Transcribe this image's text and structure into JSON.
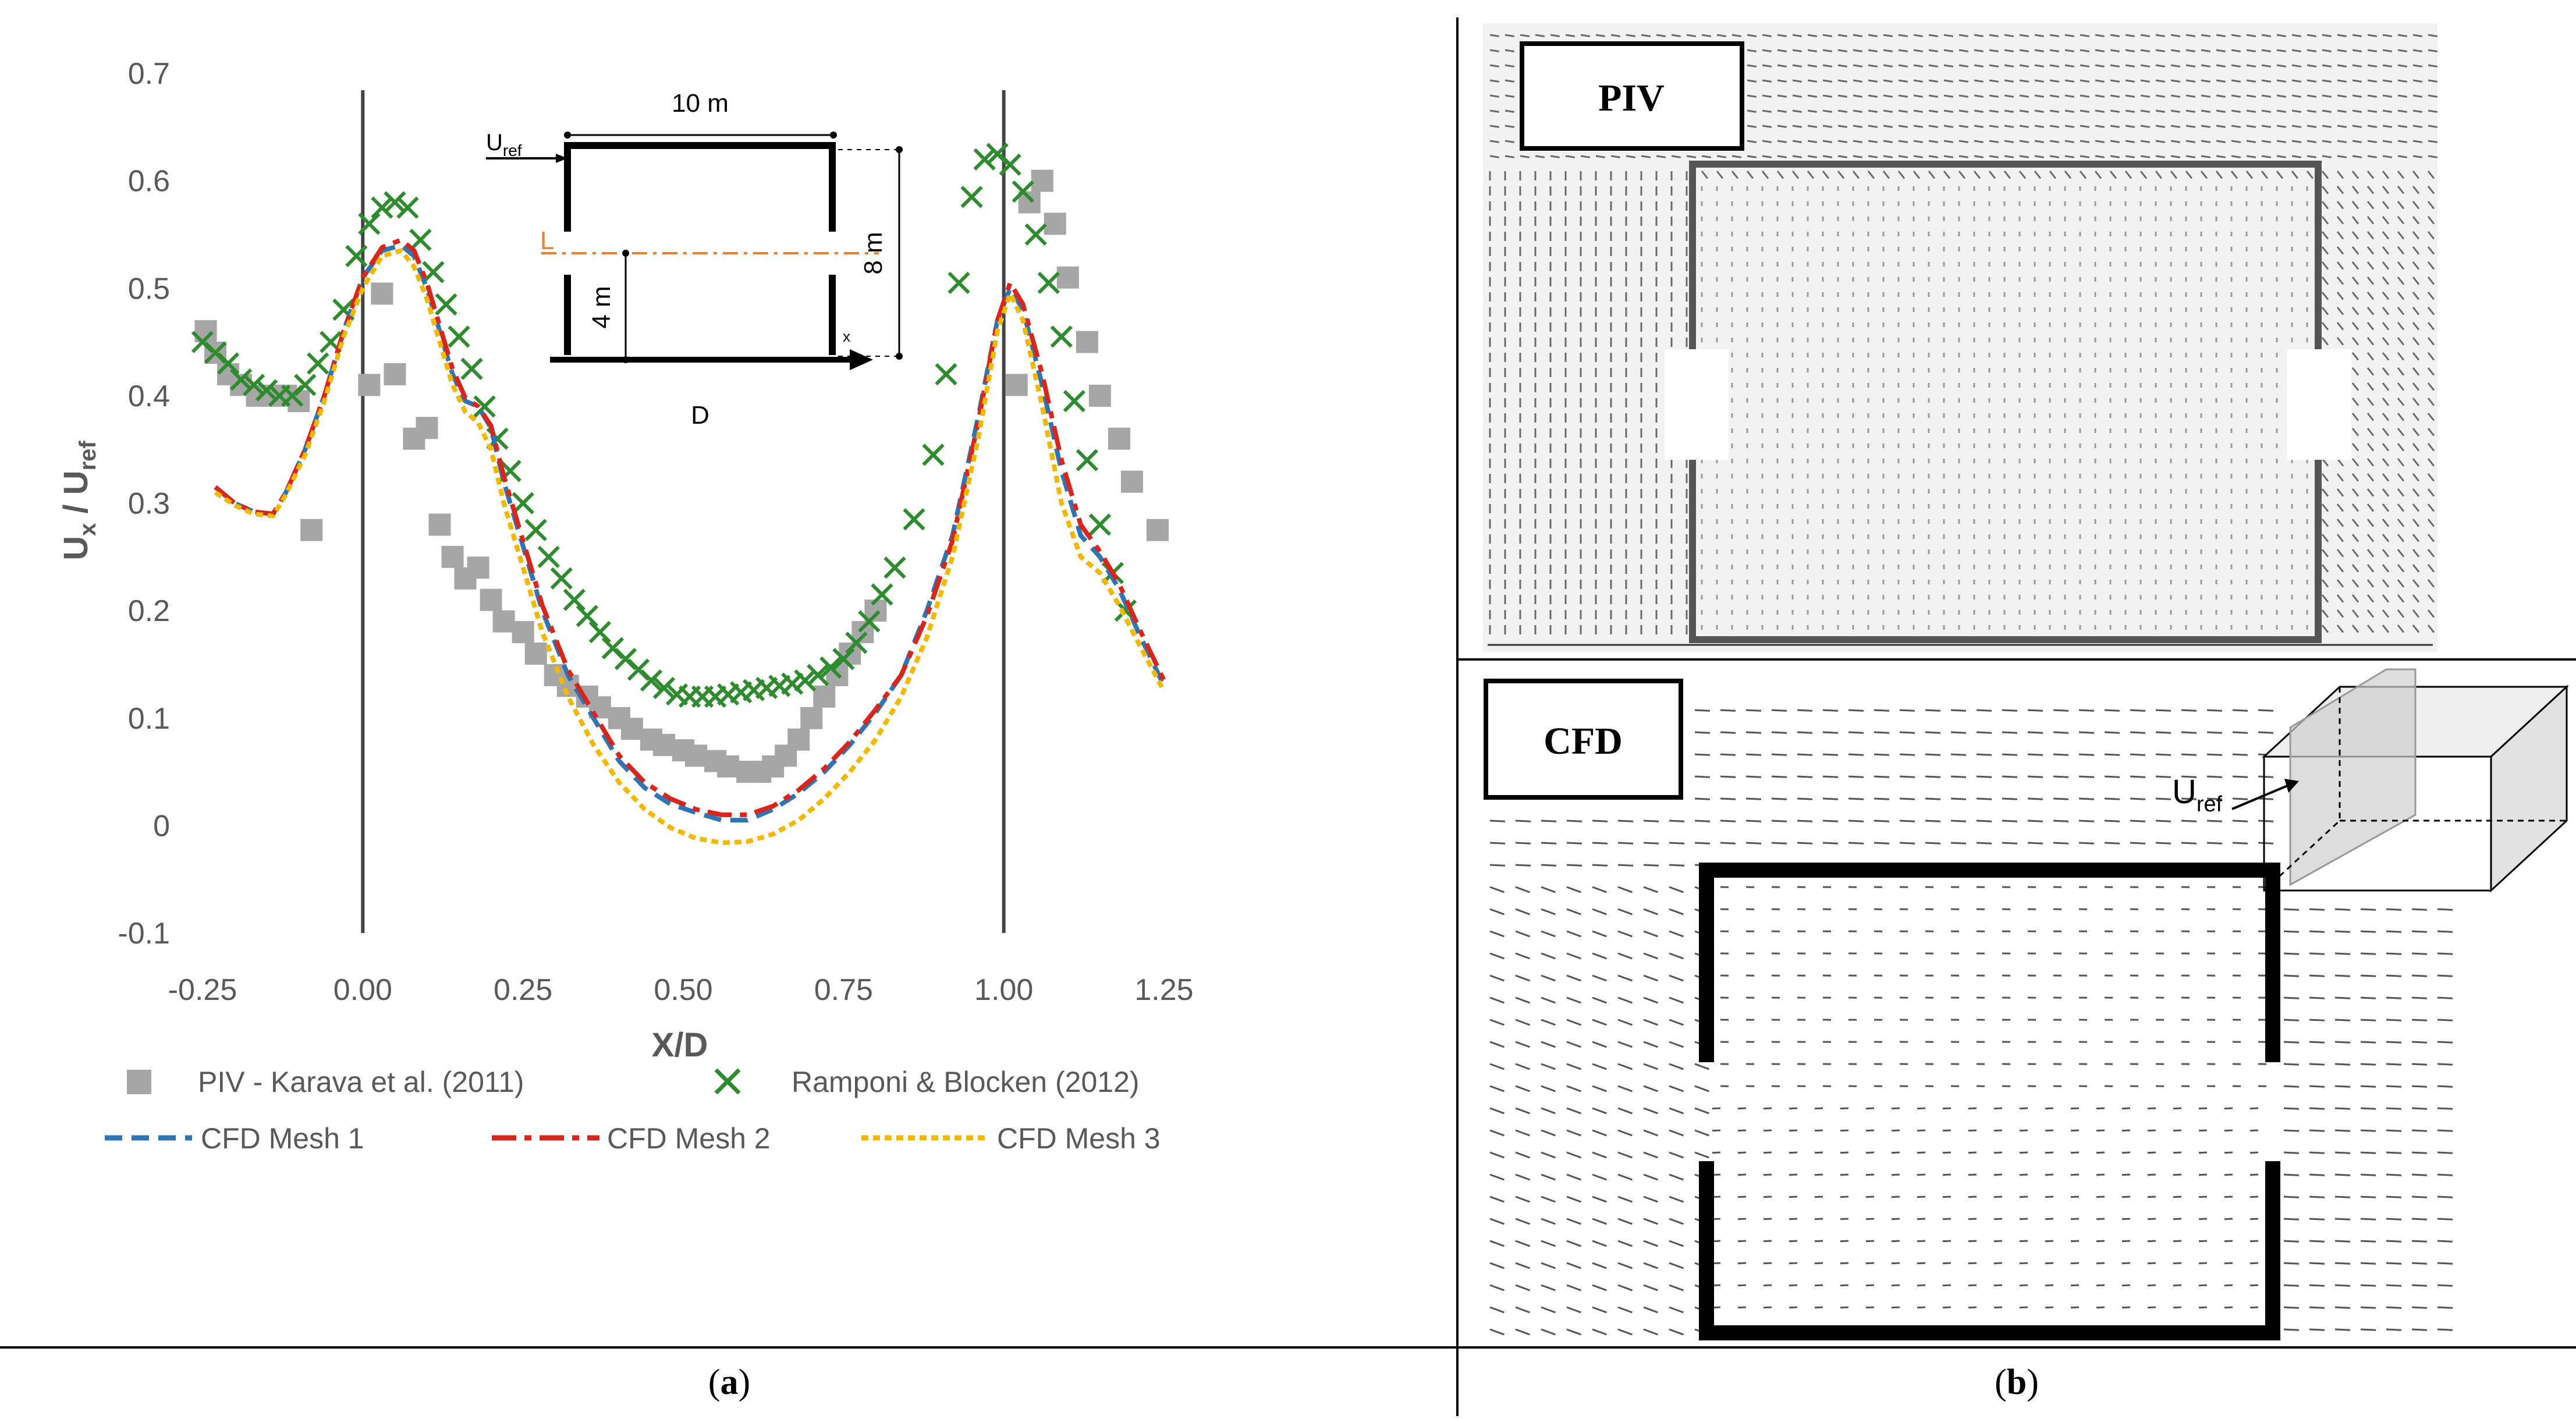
{
  "chart_data": {
    "type": "line",
    "xlabel": "X/D",
    "ylabel": "U",
    "ylabel_sub_x": "x",
    "ylabel_sub_ref": "ref",
    "xlim": [
      -0.25,
      1.25
    ],
    "ylim": [
      -0.1,
      0.7
    ],
    "xticks": [
      "-0.25",
      "0.00",
      "0.25",
      "0.50",
      "0.75",
      "1.00",
      "1.25"
    ],
    "yticks": [
      "-0.1",
      "0",
      "0.1",
      "0.2",
      "0.3",
      "0.4",
      "0.5",
      "0.6",
      "0.7"
    ],
    "xtick_values": [
      -0.25,
      0,
      0.25,
      0.5,
      0.75,
      1.0,
      1.25
    ],
    "ytick_values": [
      -0.1,
      0,
      0.1,
      0.2,
      0.3,
      0.4,
      0.5,
      0.6,
      0.7
    ],
    "vertical_lines": [
      0.0,
      1.0
    ],
    "series": [
      {
        "name": "PIV - Karava et al. (2011)",
        "marker": "square",
        "color": "#a6a6a6",
        "points": [
          [
            -0.245,
            0.46
          ],
          [
            -0.23,
            0.44
          ],
          [
            -0.21,
            0.42
          ],
          [
            -0.19,
            0.41
          ],
          [
            -0.165,
            0.4
          ],
          [
            -0.14,
            0.4
          ],
          [
            -0.12,
            0.4
          ],
          [
            -0.1,
            0.395
          ],
          [
            -0.08,
            0.275
          ],
          [
            0.01,
            0.41
          ],
          [
            0.03,
            0.495
          ],
          [
            0.05,
            0.42
          ],
          [
            0.08,
            0.36
          ],
          [
            0.1,
            0.37
          ],
          [
            0.12,
            0.28
          ],
          [
            0.14,
            0.25
          ],
          [
            0.16,
            0.23
          ],
          [
            0.18,
            0.24
          ],
          [
            0.2,
            0.21
          ],
          [
            0.22,
            0.19
          ],
          [
            0.25,
            0.18
          ],
          [
            0.27,
            0.16
          ],
          [
            0.3,
            0.14
          ],
          [
            0.32,
            0.13
          ],
          [
            0.35,
            0.12
          ],
          [
            0.37,
            0.11
          ],
          [
            0.4,
            0.1
          ],
          [
            0.42,
            0.09
          ],
          [
            0.45,
            0.08
          ],
          [
            0.47,
            0.075
          ],
          [
            0.5,
            0.07
          ],
          [
            0.52,
            0.065
          ],
          [
            0.55,
            0.06
          ],
          [
            0.57,
            0.055
          ],
          [
            0.6,
            0.05
          ],
          [
            0.62,
            0.05
          ],
          [
            0.64,
            0.055
          ],
          [
            0.66,
            0.065
          ],
          [
            0.68,
            0.08
          ],
          [
            0.7,
            0.1
          ],
          [
            0.72,
            0.12
          ],
          [
            0.74,
            0.14
          ],
          [
            0.76,
            0.16
          ],
          [
            0.78,
            0.18
          ],
          [
            0.8,
            0.2
          ],
          [
            1.02,
            0.41
          ],
          [
            1.04,
            0.58
          ],
          [
            1.06,
            0.6
          ],
          [
            1.08,
            0.56
          ],
          [
            1.1,
            0.51
          ],
          [
            1.13,
            0.45
          ],
          [
            1.15,
            0.4
          ],
          [
            1.18,
            0.36
          ],
          [
            1.2,
            0.32
          ],
          [
            1.24,
            0.275
          ]
        ]
      },
      {
        "name": "Ramponi & Blocken (2012)",
        "marker": "x",
        "color": "#2e8b2e",
        "points": [
          [
            -0.25,
            0.45
          ],
          [
            -0.23,
            0.44
          ],
          [
            -0.21,
            0.43
          ],
          [
            -0.19,
            0.415
          ],
          [
            -0.17,
            0.41
          ],
          [
            -0.15,
            0.405
          ],
          [
            -0.13,
            0.4
          ],
          [
            -0.11,
            0.4
          ],
          [
            -0.09,
            0.41
          ],
          [
            -0.07,
            0.43
          ],
          [
            -0.05,
            0.45
          ],
          [
            -0.03,
            0.48
          ],
          [
            -0.01,
            0.53
          ],
          [
            0.01,
            0.56
          ],
          [
            0.03,
            0.575
          ],
          [
            0.05,
            0.58
          ],
          [
            0.07,
            0.575
          ],
          [
            0.09,
            0.545
          ],
          [
            0.11,
            0.515
          ],
          [
            0.13,
            0.485
          ],
          [
            0.15,
            0.455
          ],
          [
            0.17,
            0.425
          ],
          [
            0.19,
            0.39
          ],
          [
            0.21,
            0.36
          ],
          [
            0.23,
            0.33
          ],
          [
            0.25,
            0.3
          ],
          [
            0.27,
            0.275
          ],
          [
            0.29,
            0.25
          ],
          [
            0.31,
            0.23
          ],
          [
            0.33,
            0.21
          ],
          [
            0.35,
            0.195
          ],
          [
            0.37,
            0.18
          ],
          [
            0.39,
            0.165
          ],
          [
            0.41,
            0.155
          ],
          [
            0.43,
            0.145
          ],
          [
            0.45,
            0.135
          ],
          [
            0.47,
            0.128
          ],
          [
            0.49,
            0.122
          ],
          [
            0.51,
            0.12
          ],
          [
            0.53,
            0.12
          ],
          [
            0.55,
            0.12
          ],
          [
            0.57,
            0.122
          ],
          [
            0.59,
            0.124
          ],
          [
            0.61,
            0.126
          ],
          [
            0.63,
            0.128
          ],
          [
            0.65,
            0.13
          ],
          [
            0.67,
            0.132
          ],
          [
            0.69,
            0.135
          ],
          [
            0.71,
            0.14
          ],
          [
            0.73,
            0.147
          ],
          [
            0.75,
            0.155
          ],
          [
            0.77,
            0.17
          ],
          [
            0.79,
            0.19
          ],
          [
            0.81,
            0.215
          ],
          [
            0.83,
            0.24
          ],
          [
            0.86,
            0.285
          ],
          [
            0.89,
            0.345
          ],
          [
            0.91,
            0.42
          ],
          [
            0.93,
            0.505
          ],
          [
            0.95,
            0.585
          ],
          [
            0.97,
            0.62
          ],
          [
            0.99,
            0.625
          ],
          [
            1.01,
            0.615
          ],
          [
            1.03,
            0.59
          ],
          [
            1.05,
            0.55
          ],
          [
            1.07,
            0.505
          ],
          [
            1.09,
            0.455
          ],
          [
            1.11,
            0.395
          ],
          [
            1.13,
            0.34
          ],
          [
            1.15,
            0.28
          ],
          [
            1.17,
            0.235
          ],
          [
            1.19,
            0.2
          ]
        ]
      },
      {
        "name": "CFD Mesh 1",
        "line": "dashed",
        "color": "#2e75b6",
        "points": [
          [
            -0.23,
            0.315
          ],
          [
            -0.2,
            0.3
          ],
          [
            -0.17,
            0.292
          ],
          [
            -0.14,
            0.29
          ],
          [
            -0.12,
            0.31
          ],
          [
            -0.09,
            0.35
          ],
          [
            -0.06,
            0.4
          ],
          [
            -0.03,
            0.46
          ],
          [
            0.0,
            0.51
          ],
          [
            0.03,
            0.535
          ],
          [
            0.06,
            0.54
          ],
          [
            0.08,
            0.53
          ],
          [
            0.1,
            0.5
          ],
          [
            0.12,
            0.46
          ],
          [
            0.14,
            0.42
          ],
          [
            0.16,
            0.395
          ],
          [
            0.18,
            0.39
          ],
          [
            0.2,
            0.37
          ],
          [
            0.22,
            0.32
          ],
          [
            0.25,
            0.26
          ],
          [
            0.28,
            0.2
          ],
          [
            0.32,
            0.14
          ],
          [
            0.36,
            0.1
          ],
          [
            0.4,
            0.06
          ],
          [
            0.44,
            0.035
          ],
          [
            0.48,
            0.02
          ],
          [
            0.52,
            0.012
          ],
          [
            0.56,
            0.005
          ],
          [
            0.6,
            0.005
          ],
          [
            0.64,
            0.015
          ],
          [
            0.68,
            0.03
          ],
          [
            0.72,
            0.05
          ],
          [
            0.76,
            0.075
          ],
          [
            0.8,
            0.105
          ],
          [
            0.84,
            0.14
          ],
          [
            0.88,
            0.2
          ],
          [
            0.92,
            0.27
          ],
          [
            0.96,
            0.38
          ],
          [
            0.99,
            0.47
          ],
          [
            1.01,
            0.5
          ],
          [
            1.03,
            0.48
          ],
          [
            1.06,
            0.41
          ],
          [
            1.09,
            0.33
          ],
          [
            1.12,
            0.27
          ],
          [
            1.15,
            0.25
          ],
          [
            1.18,
            0.22
          ],
          [
            1.21,
            0.18
          ],
          [
            1.25,
            0.13
          ]
        ]
      },
      {
        "name": "CFD Mesh 2",
        "line": "dash-dot",
        "color": "#d9261c",
        "points": [
          [
            -0.23,
            0.315
          ],
          [
            -0.2,
            0.3
          ],
          [
            -0.17,
            0.292
          ],
          [
            -0.14,
            0.29
          ],
          [
            -0.12,
            0.31
          ],
          [
            -0.09,
            0.35
          ],
          [
            -0.06,
            0.4
          ],
          [
            -0.03,
            0.46
          ],
          [
            0.0,
            0.51
          ],
          [
            0.03,
            0.538
          ],
          [
            0.06,
            0.545
          ],
          [
            0.08,
            0.535
          ],
          [
            0.1,
            0.505
          ],
          [
            0.12,
            0.465
          ],
          [
            0.14,
            0.425
          ],
          [
            0.16,
            0.398
          ],
          [
            0.18,
            0.39
          ],
          [
            0.2,
            0.372
          ],
          [
            0.22,
            0.325
          ],
          [
            0.25,
            0.265
          ],
          [
            0.28,
            0.205
          ],
          [
            0.32,
            0.145
          ],
          [
            0.36,
            0.105
          ],
          [
            0.4,
            0.065
          ],
          [
            0.44,
            0.04
          ],
          [
            0.48,
            0.025
          ],
          [
            0.52,
            0.015
          ],
          [
            0.56,
            0.01
          ],
          [
            0.6,
            0.01
          ],
          [
            0.64,
            0.018
          ],
          [
            0.68,
            0.033
          ],
          [
            0.72,
            0.053
          ],
          [
            0.76,
            0.078
          ],
          [
            0.8,
            0.108
          ],
          [
            0.84,
            0.14
          ],
          [
            0.88,
            0.195
          ],
          [
            0.92,
            0.265
          ],
          [
            0.96,
            0.375
          ],
          [
            0.99,
            0.47
          ],
          [
            1.01,
            0.505
          ],
          [
            1.03,
            0.485
          ],
          [
            1.06,
            0.42
          ],
          [
            1.09,
            0.34
          ],
          [
            1.12,
            0.28
          ],
          [
            1.15,
            0.255
          ],
          [
            1.18,
            0.225
          ],
          [
            1.21,
            0.185
          ],
          [
            1.25,
            0.135
          ]
        ]
      },
      {
        "name": "CFD Mesh 3",
        "line": "dotted",
        "color": "#f5b800",
        "points": [
          [
            -0.23,
            0.31
          ],
          [
            -0.2,
            0.298
          ],
          [
            -0.17,
            0.29
          ],
          [
            -0.14,
            0.288
          ],
          [
            -0.12,
            0.308
          ],
          [
            -0.09,
            0.345
          ],
          [
            -0.06,
            0.395
          ],
          [
            -0.03,
            0.455
          ],
          [
            0.0,
            0.5
          ],
          [
            0.03,
            0.53
          ],
          [
            0.06,
            0.535
          ],
          [
            0.08,
            0.52
          ],
          [
            0.1,
            0.49
          ],
          [
            0.12,
            0.45
          ],
          [
            0.14,
            0.41
          ],
          [
            0.16,
            0.385
          ],
          [
            0.18,
            0.375
          ],
          [
            0.2,
            0.35
          ],
          [
            0.22,
            0.3
          ],
          [
            0.25,
            0.24
          ],
          [
            0.28,
            0.18
          ],
          [
            0.32,
            0.12
          ],
          [
            0.36,
            0.075
          ],
          [
            0.4,
            0.04
          ],
          [
            0.44,
            0.015
          ],
          [
            0.48,
            -0.002
          ],
          [
            0.52,
            -0.012
          ],
          [
            0.56,
            -0.016
          ],
          [
            0.6,
            -0.015
          ],
          [
            0.64,
            -0.008
          ],
          [
            0.68,
            0.005
          ],
          [
            0.72,
            0.025
          ],
          [
            0.76,
            0.05
          ],
          [
            0.8,
            0.08
          ],
          [
            0.84,
            0.12
          ],
          [
            0.88,
            0.175
          ],
          [
            0.92,
            0.25
          ],
          [
            0.96,
            0.36
          ],
          [
            0.99,
            0.46
          ],
          [
            1.01,
            0.495
          ],
          [
            1.03,
            0.47
          ],
          [
            1.06,
            0.39
          ],
          [
            1.09,
            0.3
          ],
          [
            1.12,
            0.25
          ],
          [
            1.15,
            0.235
          ],
          [
            1.18,
            0.205
          ],
          [
            1.21,
            0.17
          ],
          [
            1.25,
            0.125
          ]
        ]
      }
    ]
  },
  "inset": {
    "u_ref": "U",
    "u_ref_sub": "ref",
    "width_label": "10 m",
    "height_label": "8 m",
    "half_height_label": "4 m",
    "line_label": "L",
    "axis_label": "D",
    "x_label": "x"
  },
  "panels": {
    "a_label_open": "(",
    "a_label_letter": "a",
    "a_label_close": ")",
    "b_label_open": "(",
    "b_label_letter": "b",
    "b_label_close": ")",
    "piv_title": "PIV",
    "cfd_title": "CFD",
    "cfd_uref": "U",
    "cfd_uref_sub": "ref"
  },
  "colors": {
    "piv_marker": "#a6a6a6",
    "ramponi_marker": "#2e8b2e",
    "mesh1": "#2e75b6",
    "mesh2": "#d9261c",
    "mesh3": "#f5b800",
    "axis_text": "#595959"
  }
}
